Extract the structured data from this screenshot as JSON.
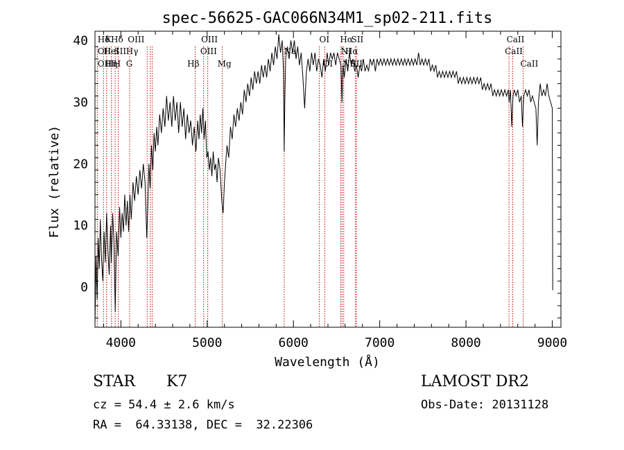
{
  "chart_data": {
    "type": "line",
    "title": "spec-56625-GAC066N34M1_sp02-211.fits",
    "xlabel": "Wavelength (Å)",
    "ylabel": "Flux (relative)",
    "xlim": [
      3700,
      9100
    ],
    "ylim": [
      -6.5,
      41.5
    ],
    "xticks": [
      4000,
      5000,
      6000,
      7000,
      8000,
      9000
    ],
    "yticks": [
      0,
      10,
      20,
      30,
      40
    ],
    "grid": false,
    "series": [
      {
        "color": "#000000",
        "points": [
          [
            3700,
            -6
          ],
          [
            3712,
            5
          ],
          [
            3725,
            -2
          ],
          [
            3738,
            8
          ],
          [
            3750,
            3
          ],
          [
            3762,
            11
          ],
          [
            3775,
            5
          ],
          [
            3790,
            1
          ],
          [
            3805,
            9
          ],
          [
            3820,
            4
          ],
          [
            3835,
            12
          ],
          [
            3850,
            6
          ],
          [
            3865,
            2
          ],
          [
            3880,
            10
          ],
          [
            3890,
            4
          ],
          [
            3905,
            12
          ],
          [
            3920,
            7
          ],
          [
            3935,
            -4
          ],
          [
            3950,
            9
          ],
          [
            3968,
            5
          ],
          [
            3985,
            13
          ],
          [
            4000,
            8
          ],
          [
            4015,
            12
          ],
          [
            4030,
            9
          ],
          [
            4045,
            15
          ],
          [
            4060,
            10
          ],
          [
            4075,
            14
          ],
          [
            4090,
            9
          ],
          [
            4105,
            15
          ],
          [
            4120,
            11
          ],
          [
            4140,
            17
          ],
          [
            4160,
            14
          ],
          [
            4180,
            18
          ],
          [
            4200,
            15
          ],
          [
            4220,
            19
          ],
          [
            4240,
            16
          ],
          [
            4260,
            20
          ],
          [
            4280,
            17
          ],
          [
            4300,
            8
          ],
          [
            4310,
            12
          ],
          [
            4325,
            20
          ],
          [
            4340,
            16
          ],
          [
            4355,
            23
          ],
          [
            4370,
            19
          ],
          [
            4385,
            25
          ],
          [
            4400,
            22
          ],
          [
            4415,
            26
          ],
          [
            4430,
            23
          ],
          [
            4450,
            28
          ],
          [
            4470,
            25
          ],
          [
            4490,
            29
          ],
          [
            4510,
            26
          ],
          [
            4530,
            31
          ],
          [
            4550,
            27
          ],
          [
            4570,
            30
          ],
          [
            4590,
            26
          ],
          [
            4610,
            31
          ],
          [
            4630,
            27
          ],
          [
            4650,
            30
          ],
          [
            4670,
            25
          ],
          [
            4690,
            30
          ],
          [
            4710,
            26
          ],
          [
            4730,
            29
          ],
          [
            4750,
            24
          ],
          [
            4770,
            28
          ],
          [
            4790,
            25
          ],
          [
            4810,
            27
          ],
          [
            4830,
            23
          ],
          [
            4850,
            26
          ],
          [
            4870,
            22
          ],
          [
            4890,
            27
          ],
          [
            4905,
            24
          ],
          [
            4920,
            28
          ],
          [
            4935,
            25
          ],
          [
            4950,
            29
          ],
          [
            4965,
            24
          ],
          [
            4980,
            27
          ],
          [
            4995,
            21
          ],
          [
            5010,
            22
          ],
          [
            5025,
            19
          ],
          [
            5040,
            21
          ],
          [
            5055,
            18
          ],
          [
            5070,
            22
          ],
          [
            5085,
            19
          ],
          [
            5100,
            20
          ],
          [
            5115,
            17
          ],
          [
            5130,
            21
          ],
          [
            5150,
            19
          ],
          [
            5170,
            14
          ],
          [
            5185,
            12
          ],
          [
            5200,
            17
          ],
          [
            5215,
            20
          ],
          [
            5230,
            23
          ],
          [
            5250,
            21
          ],
          [
            5270,
            26
          ],
          [
            5290,
            24
          ],
          [
            5310,
            28
          ],
          [
            5330,
            26
          ],
          [
            5350,
            29
          ],
          [
            5370,
            27
          ],
          [
            5390,
            30
          ],
          [
            5410,
            28
          ],
          [
            5430,
            32
          ],
          [
            5450,
            30
          ],
          [
            5470,
            33
          ],
          [
            5490,
            31
          ],
          [
            5510,
            34
          ],
          [
            5530,
            32
          ],
          [
            5550,
            35
          ],
          [
            5570,
            33
          ],
          [
            5590,
            35
          ],
          [
            5610,
            33
          ],
          [
            5630,
            36
          ],
          [
            5650,
            34
          ],
          [
            5670,
            36
          ],
          [
            5690,
            34
          ],
          [
            5710,
            37
          ],
          [
            5730,
            35
          ],
          [
            5750,
            38
          ],
          [
            5770,
            36
          ],
          [
            5790,
            39
          ],
          [
            5810,
            37
          ],
          [
            5830,
            41
          ],
          [
            5850,
            38
          ],
          [
            5870,
            40
          ],
          [
            5885,
            35
          ],
          [
            5893,
            22
          ],
          [
            5900,
            30
          ],
          [
            5910,
            37
          ],
          [
            5930,
            39
          ],
          [
            5950,
            37
          ],
          [
            5970,
            40
          ],
          [
            5990,
            38
          ],
          [
            6010,
            40
          ],
          [
            6030,
            37
          ],
          [
            6050,
            39
          ],
          [
            6070,
            36
          ],
          [
            6090,
            38
          ],
          [
            6110,
            34
          ],
          [
            6130,
            29
          ],
          [
            6150,
            35
          ],
          [
            6170,
            37
          ],
          [
            6190,
            35
          ],
          [
            6210,
            38
          ],
          [
            6230,
            36
          ],
          [
            6250,
            38
          ],
          [
            6270,
            35
          ],
          [
            6290,
            37
          ],
          [
            6310,
            36
          ],
          [
            6330,
            34
          ],
          [
            6350,
            37
          ],
          [
            6370,
            35
          ],
          [
            6390,
            38
          ],
          [
            6410,
            36
          ],
          [
            6430,
            38
          ],
          [
            6450,
            37
          ],
          [
            6470,
            38
          ],
          [
            6490,
            36
          ],
          [
            6510,
            38
          ],
          [
            6530,
            37
          ],
          [
            6550,
            36
          ],
          [
            6563,
            30
          ],
          [
            6575,
            36
          ],
          [
            6590,
            34
          ],
          [
            6610,
            37
          ],
          [
            6630,
            35
          ],
          [
            6650,
            38
          ],
          [
            6670,
            36
          ],
          [
            6690,
            37
          ],
          [
            6710,
            35
          ],
          [
            6730,
            36
          ],
          [
            6750,
            34
          ],
          [
            6770,
            36
          ],
          [
            6790,
            35
          ],
          [
            6810,
            37
          ],
          [
            6830,
            35
          ],
          [
            6850,
            36
          ],
          [
            6870,
            35
          ],
          [
            6890,
            37
          ],
          [
            6910,
            36
          ],
          [
            6930,
            37
          ],
          [
            6950,
            35
          ],
          [
            6970,
            37
          ],
          [
            6990,
            36
          ],
          [
            7010,
            37
          ],
          [
            7030,
            36
          ],
          [
            7050,
            37
          ],
          [
            7070,
            36
          ],
          [
            7090,
            37
          ],
          [
            7110,
            36
          ],
          [
            7130,
            37
          ],
          [
            7150,
            36
          ],
          [
            7170,
            37
          ],
          [
            7190,
            36
          ],
          [
            7210,
            37
          ],
          [
            7230,
            36
          ],
          [
            7250,
            37
          ],
          [
            7270,
            36
          ],
          [
            7290,
            37
          ],
          [
            7310,
            36
          ],
          [
            7330,
            37
          ],
          [
            7350,
            36
          ],
          [
            7370,
            37
          ],
          [
            7390,
            36
          ],
          [
            7410,
            37
          ],
          [
            7430,
            36
          ],
          [
            7450,
            38
          ],
          [
            7470,
            36
          ],
          [
            7490,
            37
          ],
          [
            7510,
            36
          ],
          [
            7530,
            37
          ],
          [
            7550,
            36
          ],
          [
            7570,
            37
          ],
          [
            7590,
            35
          ],
          [
            7610,
            36
          ],
          [
            7630,
            35
          ],
          [
            7650,
            36
          ],
          [
            7670,
            34
          ],
          [
            7690,
            35
          ],
          [
            7710,
            34
          ],
          [
            7730,
            35
          ],
          [
            7750,
            34
          ],
          [
            7770,
            35
          ],
          [
            7790,
            34
          ],
          [
            7810,
            35
          ],
          [
            7830,
            34
          ],
          [
            7850,
            35
          ],
          [
            7870,
            34
          ],
          [
            7890,
            35
          ],
          [
            7910,
            33
          ],
          [
            7930,
            34
          ],
          [
            7950,
            33
          ],
          [
            7970,
            34
          ],
          [
            7990,
            33
          ],
          [
            8010,
            34
          ],
          [
            8030,
            33
          ],
          [
            8050,
            34
          ],
          [
            8070,
            33
          ],
          [
            8090,
            34
          ],
          [
            8110,
            33
          ],
          [
            8130,
            34
          ],
          [
            8150,
            33
          ],
          [
            8170,
            34
          ],
          [
            8190,
            32
          ],
          [
            8210,
            33
          ],
          [
            8230,
            32
          ],
          [
            8250,
            33
          ],
          [
            8270,
            32
          ],
          [
            8290,
            33
          ],
          [
            8310,
            31
          ],
          [
            8330,
            32
          ],
          [
            8350,
            31
          ],
          [
            8370,
            32
          ],
          [
            8390,
            31
          ],
          [
            8410,
            32
          ],
          [
            8430,
            31
          ],
          [
            8450,
            32
          ],
          [
            8470,
            31
          ],
          [
            8490,
            32
          ],
          [
            8500,
            30
          ],
          [
            8515,
            32
          ],
          [
            8530,
            26
          ],
          [
            8545,
            31
          ],
          [
            8560,
            32
          ],
          [
            8580,
            31
          ],
          [
            8600,
            32
          ],
          [
            8620,
            30
          ],
          [
            8640,
            31
          ],
          [
            8655,
            26
          ],
          [
            8670,
            31
          ],
          [
            8690,
            32
          ],
          [
            8710,
            31
          ],
          [
            8730,
            32
          ],
          [
            8750,
            30
          ],
          [
            8770,
            31
          ],
          [
            8790,
            30
          ],
          [
            8810,
            29
          ],
          [
            8825,
            23
          ],
          [
            8840,
            30
          ],
          [
            8860,
            33
          ],
          [
            8880,
            31
          ],
          [
            8900,
            32
          ],
          [
            8920,
            31
          ],
          [
            8940,
            33
          ],
          [
            8960,
            31
          ],
          [
            8980,
            30
          ],
          [
            9000,
            29
          ],
          [
            9005,
            -0.5
          ]
        ]
      }
    ],
    "line_labels": [
      {
        "text": "Hδ",
        "x": 3730,
        "row": 0
      },
      {
        "text": "K",
        "x": 3820,
        "row": 0
      },
      {
        "text": "Hδ",
        "x": 3885,
        "row": 0
      },
      {
        "text": "OIII",
        "x": 4080,
        "row": 0
      },
      {
        "text": "OIII",
        "x": 4930,
        "row": 0
      },
      {
        "text": "OI",
        "x": 6300,
        "row": 0
      },
      {
        "text": "Hα",
        "x": 6540,
        "row": 0
      },
      {
        "text": "SII",
        "x": 6670,
        "row": 0
      },
      {
        "text": "CaII",
        "x": 8470,
        "row": 0
      },
      {
        "text": "OII",
        "x": 3730,
        "row": 1
      },
      {
        "text": "HeI",
        "x": 3800,
        "row": 1
      },
      {
        "text": "SII",
        "x": 3920,
        "row": 1
      },
      {
        "text": "Hγ",
        "x": 4060,
        "row": 1
      },
      {
        "text": "OIII",
        "x": 4920,
        "row": 1
      },
      {
        "text": "Na",
        "x": 5890,
        "row": 1
      },
      {
        "text": "NI",
        "x": 6550,
        "row": 1
      },
      {
        "text": "Hα",
        "x": 6600,
        "row": 1
      },
      {
        "text": "CaII",
        "x": 8450,
        "row": 1
      },
      {
        "text": "OIII",
        "x": 3730,
        "row": 2
      },
      {
        "text": "Hη",
        "x": 3820,
        "row": 2
      },
      {
        "text": "H",
        "x": 3915,
        "row": 2
      },
      {
        "text": "G",
        "x": 4060,
        "row": 2
      },
      {
        "text": "Hβ",
        "x": 4770,
        "row": 2
      },
      {
        "text": "Mg",
        "x": 5120,
        "row": 2
      },
      {
        "text": "OI",
        "x": 6340,
        "row": 2
      },
      {
        "text": "NII",
        "x": 6570,
        "row": 2
      },
      {
        "text": "SII",
        "x": 6660,
        "row": 2
      },
      {
        "text": "CaII",
        "x": 8630,
        "row": 2
      }
    ],
    "marker_lines": [
      3727,
      3798,
      3835,
      3889,
      3934,
      3969,
      4102,
      4305,
      4341,
      4363,
      4861,
      4959,
      5007,
      5175,
      5893,
      6300,
      6364,
      6548,
      6563,
      6583,
      6717,
      6731,
      8498,
      8542,
      8662
    ]
  },
  "info": {
    "object_type": "STAR",
    "subclass": "K7",
    "survey": "LAMOST DR2",
    "cz": "cz = 54.4 ± 2.6 km/s",
    "obs_date": "Obs-Date: 20131128",
    "coords": "RA =  64.33138, DEC =  32.22306"
  }
}
